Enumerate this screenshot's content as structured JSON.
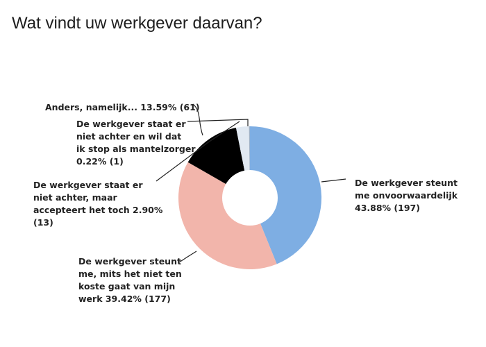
{
  "title": "Wat vindt uw werkgever daarvan?",
  "chart_data": {
    "type": "pie",
    "subtype": "donut",
    "title": "Wat vindt uw werkgever daarvan?",
    "categories": [
      "De werkgever steunt me onvoorwaardelijk",
      "De werkgever steunt me, mits het niet ten koste gaat van mijn werk",
      "Anders, namelijk...",
      "De werkgever staat er niet achter, maar accepteert het toch",
      "De werkgever staat er niet achter en wil dat ik stop als mantelzorger"
    ],
    "values": [
      43.88,
      39.42,
      13.59,
      2.9,
      0.22
    ],
    "counts": [
      197,
      177,
      61,
      13,
      1
    ],
    "colors": [
      "#7eaee3",
      "#f2b5ab",
      "#000000",
      "#e1e9f2",
      "#9fb2c8"
    ],
    "legend": "none (callout labels)"
  },
  "labels": {
    "steunt_onvoorwaardelijk": [
      "De werkgever steunt",
      "me onvoorwaardelijk",
      "43.88% (197)"
    ],
    "steunt_mits": [
      "De werkgever steunt",
      "me, mits het niet ten",
      "koste gaat van mijn",
      "werk 39.42% (177)"
    ],
    "anders": [
      "Anders, namelijk... 13.59% (61)"
    ],
    "niet_achter_accepteert": [
      "De werkgever staat er",
      "niet achter, maar",
      "accepteert het toch 2.90%",
      "(13)"
    ],
    "niet_achter_stop": [
      "De werkgever staat er",
      "niet achter en wil dat",
      "ik stop als mantelzorger",
      "0.22% (1)"
    ]
  }
}
